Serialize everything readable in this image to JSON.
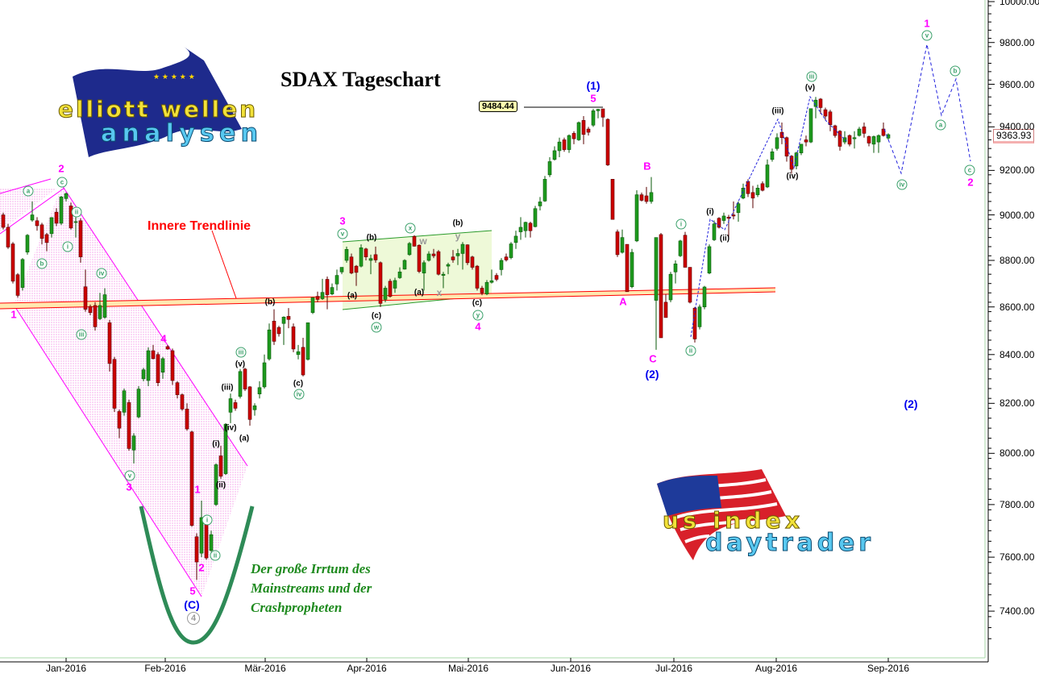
{
  "chart_data": {
    "type": "candlestick",
    "title": "SDAX Tageschart",
    "y_scale": "log",
    "ylim": [
      7300,
      10050
    ],
    "y_ticks": [
      "10000.00",
      "9800.00",
      "9600.00",
      "9400.00",
      "9200.00",
      "9000.00",
      "8800.00",
      "8600.00",
      "8400.00",
      "8200.00",
      "8000.00",
      "7800.00",
      "7600.00",
      "7400.00"
    ],
    "x_ticks": [
      "Jan-2016",
      "Feb-2016",
      "Mär-2016",
      "Apr-2016",
      "Mai-2016",
      "Jun-2016",
      "Jul-2016",
      "Aug-2016",
      "Sep-2016"
    ],
    "last_price": "9363.93",
    "high_marker": "9484.44",
    "colors": {
      "up": "#1e9a1e",
      "down": "#cc0000",
      "channel": "#ff00ff",
      "trendline": "#ff0000",
      "projection": "#2222dd"
    },
    "candles_ohlc": [
      [
        9000,
        9010,
        8935,
        8945
      ],
      [
        8945,
        8960,
        8850,
        8858
      ],
      [
        8872,
        8880,
        8700,
        8710
      ],
      [
        8738,
        8745,
        8640,
        8649
      ],
      [
        8683,
        8810,
        8670,
        8804
      ],
      [
        8836,
        8915,
        8825,
        8910
      ],
      [
        8977,
        9060,
        8970,
        9000
      ],
      [
        8974,
        8990,
        8930,
        8952
      ],
      [
        8956,
        8965,
        8870,
        8896
      ],
      [
        8913,
        8920,
        8840,
        8878
      ],
      [
        8917,
        8990,
        8900,
        8988
      ],
      [
        9012,
        9030,
        8950,
        8963
      ],
      [
        8963,
        9085,
        8955,
        9080
      ],
      [
        9073,
        9100,
        9060,
        9095
      ],
      [
        9040,
        9055,
        8935,
        8942
      ],
      [
        8967,
        8990,
        8900,
        8970
      ],
      [
        8974,
        8985,
        8790,
        8815
      ],
      [
        8686,
        8760,
        8580,
        8590
      ],
      [
        8602,
        8610,
        8565,
        8576
      ],
      [
        8606,
        8620,
        8500,
        8516
      ],
      [
        8550,
        8660,
        8545,
        8606
      ],
      [
        8556,
        8680,
        8550,
        8652
      ],
      [
        8533,
        8545,
        8330,
        8363
      ],
      [
        8380,
        8390,
        8165,
        8180
      ],
      [
        8167,
        8175,
        8060,
        8100
      ],
      [
        8164,
        8260,
        8150,
        8251
      ],
      [
        8203,
        8215,
        8010,
        8019
      ],
      [
        8013,
        8080,
        7960,
        8069
      ],
      [
        8145,
        8270,
        8140,
        8258
      ],
      [
        8300,
        8345,
        8290,
        8337
      ],
      [
        8293,
        8430,
        8270,
        8416
      ],
      [
        8416,
        8440,
        8380,
        8383
      ],
      [
        8400,
        8410,
        8270,
        8284
      ],
      [
        8327,
        8390,
        8300,
        8383
      ],
      [
        8433,
        8440,
        8420,
        8423
      ],
      [
        8416,
        8425,
        8275,
        8293
      ],
      [
        8284,
        8290,
        8220,
        8235
      ],
      [
        8235,
        8240,
        8170,
        8177
      ],
      [
        8177,
        8200,
        8090,
        8097
      ],
      [
        8085,
        8090,
        7715,
        7720
      ],
      [
        7677,
        7690,
        7515,
        7582
      ],
      [
        7615,
        7815,
        7600,
        7750
      ],
      [
        7750,
        7760,
        7590,
        7597
      ],
      [
        7625,
        7700,
        7620,
        7685
      ],
      [
        7800,
        7960,
        7795,
        7955
      ],
      [
        7990,
        8030,
        7900,
        7910
      ],
      [
        7920,
        8120,
        7915,
        8116
      ],
      [
        8164,
        8240,
        8120,
        8219
      ],
      [
        8203,
        8215,
        8170,
        8180
      ],
      [
        8228,
        8340,
        8220,
        8330
      ],
      [
        8340,
        8345,
        8250,
        8258
      ],
      [
        8267,
        8270,
        8110,
        8135
      ],
      [
        8174,
        8200,
        8150,
        8190
      ],
      [
        8238,
        8290,
        8220,
        8264
      ],
      [
        8267,
        8400,
        8260,
        8366
      ],
      [
        8382,
        8530,
        8375,
        8503
      ],
      [
        8540,
        8590,
        8440,
        8455
      ],
      [
        8513,
        8520,
        8475,
        8487
      ],
      [
        8530,
        8560,
        8440,
        8557
      ],
      [
        8560,
        8595,
        8510,
        8547
      ],
      [
        8516,
        8530,
        8410,
        8423
      ],
      [
        8400,
        8440,
        8380,
        8412
      ],
      [
        8430,
        8470,
        8310,
        8316
      ],
      [
        8380,
        8533,
        8375,
        8533
      ],
      [
        8576,
        8640,
        8570,
        8640
      ],
      [
        8645,
        8665,
        8620,
        8632
      ],
      [
        8635,
        8720,
        8630,
        8662
      ],
      [
        8718,
        8730,
        8590,
        8652
      ],
      [
        8655,
        8700,
        8650,
        8683
      ],
      [
        8698,
        8760,
        8670,
        8735
      ],
      [
        8750,
        8770,
        8740,
        8770
      ],
      [
        8800,
        8860,
        8790,
        8848
      ],
      [
        8815,
        8830,
        8740,
        8745
      ],
      [
        8775,
        8780,
        8690,
        8748
      ],
      [
        8775,
        8870,
        8770,
        8855
      ],
      [
        8850,
        8855,
        8800,
        8815
      ],
      [
        8800,
        8825,
        8740,
        8808
      ],
      [
        8825,
        8860,
        8790,
        8802
      ],
      [
        8790,
        8795,
        8600,
        8615
      ],
      [
        8632,
        8690,
        8620,
        8680
      ],
      [
        8710,
        8720,
        8640,
        8645
      ],
      [
        8680,
        8725,
        8660,
        8713
      ],
      [
        8725,
        8770,
        8720,
        8750
      ],
      [
        8762,
        8805,
        8760,
        8800
      ],
      [
        8825,
        8880,
        8820,
        8874
      ],
      [
        8905,
        8910,
        8860,
        8862
      ],
      [
        8866,
        8870,
        8745,
        8752
      ],
      [
        8745,
        8800,
        8670,
        8790
      ],
      [
        8800,
        8840,
        8795,
        8828
      ],
      [
        8828,
        8850,
        8810,
        8820
      ],
      [
        8838,
        8845,
        8735,
        8740
      ],
      [
        8735,
        8750,
        8680,
        8740
      ],
      [
        8775,
        8790,
        8740,
        8782
      ],
      [
        8815,
        8845,
        8790,
        8802
      ],
      [
        8820,
        8850,
        8780,
        8830
      ],
      [
        8830,
        8880,
        8760,
        8870
      ],
      [
        8868,
        8870,
        8780,
        8790
      ],
      [
        8815,
        8820,
        8760,
        8770
      ],
      [
        8775,
        8780,
        8670,
        8680
      ],
      [
        8680,
        8690,
        8650,
        8660
      ],
      [
        8655,
        8715,
        8650,
        8705
      ],
      [
        8705,
        8760,
        8700,
        8712
      ],
      [
        8735,
        8745,
        8710,
        8718
      ],
      [
        8760,
        8810,
        8735,
        8800
      ],
      [
        8815,
        8830,
        8795,
        8802
      ],
      [
        8812,
        8880,
        8805,
        8872
      ],
      [
        8878,
        8930,
        8850,
        8906
      ],
      [
        8925,
        8990,
        8890,
        8945
      ],
      [
        8930,
        8970,
        8900,
        8967
      ],
      [
        8963,
        8970,
        8900,
        8930
      ],
      [
        8948,
        9040,
        8945,
        9028
      ],
      [
        9040,
        9080,
        9020,
        9058
      ],
      [
        9062,
        9175,
        9058,
        9160
      ],
      [
        9180,
        9260,
        9170,
        9240
      ],
      [
        9250,
        9310,
        9245,
        9290
      ],
      [
        9290,
        9350,
        9260,
        9330
      ],
      [
        9340,
        9350,
        9285,
        9295
      ],
      [
        9295,
        9365,
        9280,
        9360
      ],
      [
        9370,
        9380,
        9320,
        9345
      ],
      [
        9340,
        9425,
        9335,
        9420
      ],
      [
        9430,
        9450,
        9320,
        9365
      ],
      [
        9390,
        9400,
        9360,
        9375
      ],
      [
        9408,
        9484,
        9400,
        9475
      ],
      [
        9475,
        9484,
        9440,
        9482
      ],
      [
        9484,
        9484,
        9400,
        9445
      ],
      [
        9435,
        9440,
        9220,
        9225
      ],
      [
        9160,
        9160,
        8980,
        8980
      ],
      [
        8925,
        8935,
        8815,
        8825
      ],
      [
        8835,
        8935,
        8830,
        8900
      ],
      [
        8870,
        8870,
        8665,
        8665
      ],
      [
        8686,
        8850,
        8680,
        8835
      ],
      [
        8885,
        9110,
        8880,
        9090
      ],
      [
        9090,
        9100,
        9060,
        9065
      ],
      [
        9085,
        9125,
        9050,
        9060
      ],
      [
        9060,
        9170,
        9050,
        9100
      ],
      [
        8628,
        8900,
        8420,
        8900
      ],
      [
        8913,
        8920,
        8470,
        8470
      ],
      [
        8620,
        8655,
        8555,
        8555
      ],
      [
        8630,
        8750,
        8620,
        8740
      ],
      [
        8750,
        8800,
        8700,
        8785
      ],
      [
        8820,
        8890,
        8815,
        8885
      ],
      [
        8910,
        8925,
        8770,
        8770
      ],
      [
        8770,
        8770,
        8615,
        8620
      ],
      [
        8595,
        8600,
        8450,
        8465
      ],
      [
        8516,
        8610,
        8505,
        8600
      ],
      [
        8600,
        8690,
        8590,
        8685
      ],
      [
        8745,
        8870,
        8740,
        8860
      ],
      [
        8890,
        8975,
        8885,
        8960
      ],
      [
        8985,
        8990,
        8940,
        8945
      ],
      [
        8975,
        9010,
        8960,
        8995
      ],
      [
        8990,
        9000,
        8890,
        8985
      ],
      [
        9000,
        9060,
        8980,
        8995
      ],
      [
        9010,
        9060,
        8970,
        9050
      ],
      [
        9075,
        9140,
        9070,
        9120
      ],
      [
        9150,
        9160,
        9080,
        9095
      ],
      [
        9100,
        9130,
        9030,
        9075
      ],
      [
        9090,
        9135,
        9080,
        9120
      ],
      [
        9140,
        9150,
        9105,
        9110
      ],
      [
        9125,
        9250,
        9120,
        9225
      ],
      [
        9250,
        9300,
        9240,
        9285
      ],
      [
        9300,
        9370,
        9290,
        9350
      ],
      [
        9375,
        9420,
        9320,
        9350
      ],
      [
        9350,
        9355,
        9240,
        9265
      ],
      [
        9265,
        9270,
        9185,
        9205
      ],
      [
        9220,
        9285,
        9205,
        9280
      ],
      [
        9280,
        9320,
        9270,
        9320
      ],
      [
        9340,
        9360,
        9310,
        9330
      ],
      [
        9330,
        9485,
        9325,
        9485
      ],
      [
        9495,
        9540,
        9440,
        9525
      ],
      [
        9530,
        9535,
        9460,
        9490
      ],
      [
        9480,
        9490,
        9430,
        9450
      ],
      [
        9470,
        9480,
        9380,
        9410
      ],
      [
        9405,
        9410,
        9350,
        9360
      ],
      [
        9380,
        9385,
        9290,
        9310
      ],
      [
        9330,
        9380,
        9320,
        9350
      ],
      [
        9360,
        9365,
        9310,
        9320
      ],
      [
        9345,
        9380,
        9300,
        9350
      ],
      [
        9360,
        9400,
        9355,
        9390
      ],
      [
        9400,
        9420,
        9350,
        9370
      ],
      [
        9355,
        9360,
        9310,
        9325
      ],
      [
        9320,
        9360,
        9280,
        9355
      ],
      [
        9330,
        9365,
        9280,
        9360
      ],
      [
        9390,
        9420,
        9355,
        9360
      ],
      [
        9348,
        9370,
        9340,
        9364
      ]
    ]
  },
  "annotations": {
    "trendline_label": "Innere Trendlinie",
    "comment_lines": [
      "Der große Irrtum des",
      "Mainstreams und der",
      "Crashpropheten"
    ],
    "wave_labels": {
      "m2a": "2",
      "m1a": "1",
      "m3a": "3",
      "m4a": "4",
      "m5a": "5",
      "m1b": "1",
      "m2b": "2",
      "m3b": "3",
      "m4b": "4",
      "m5b": "5",
      "mA": "A",
      "mB": "B",
      "mC": "C",
      "m1c": "1",
      "m2c": "2",
      "bC": "(C)",
      "b1": "(1)",
      "b2a": "(2)",
      "b2b": "(2)",
      "g4": "4",
      "ca": "a",
      "cc": "c",
      "cb": "b",
      "ci1": "i",
      "cii1": "ii",
      "civ1": "iv",
      "ciii1": "iii",
      "cv1": "v",
      "ci2": "i",
      "cii2": "ii",
      "ciii2": "iii",
      "civ2": "iv",
      "cv2": "v",
      "cw": "w",
      "cx": "x",
      "cy": "y",
      "ci3": "i",
      "cii3": "ii",
      "ciii3": "iii",
      "cv3": "v",
      "civ3": "iv",
      "ca2": "a",
      "cb2": "b",
      "cc2": "c",
      "k_iii1": "(iii)",
      "k_v1": "(v)",
      "k_iv1": "(iv)",
      "k_i1": "(i)",
      "k_ii1": "(ii)",
      "k_a1": "(a)",
      "k_b1": "(b)",
      "k_c1": "(c)",
      "k_b2": "(b)",
      "k_a2": "(a)",
      "k_c2": "(c)",
      "k_a3": "(a)",
      "k_b3": "(b)",
      "k_c3": "(c)",
      "k_i2": "(i)",
      "k_ii2": "(ii)",
      "k_iii2": "(iii)",
      "k_iv2": "(iv)",
      "k_v2": "(v)",
      "gw": "w",
      "gy": "y",
      "gx": "x"
    }
  },
  "logos": {
    "top_left": {
      "line1": "elliott wellen",
      "line2": "analysen"
    },
    "bottom_right": {
      "line1": "us index",
      "line2": "daytrader"
    }
  }
}
